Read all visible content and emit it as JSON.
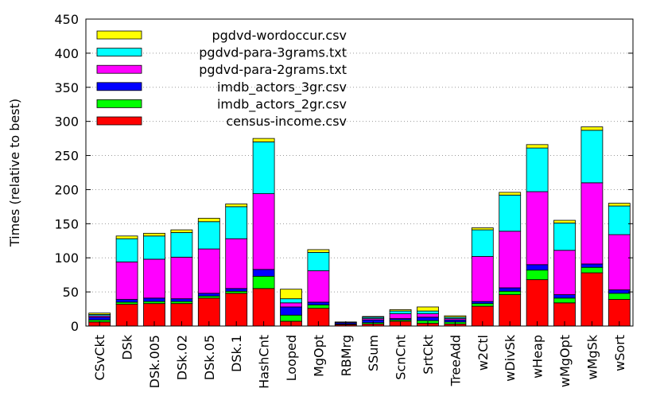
{
  "chart_data": {
    "type": "bar",
    "stacked": true,
    "title": "",
    "xlabel": "",
    "ylabel": "Times (relative to best)",
    "ylim": [
      0,
      450
    ],
    "yticks": [
      0,
      50,
      100,
      150,
      200,
      250,
      300,
      350,
      400,
      450
    ],
    "grid": "y dotted",
    "legend_position": "top-left",
    "categories": [
      "CSvCkt",
      "DSk",
      "DSk.005",
      "DSk.02",
      "DSk.05",
      "DSk.1",
      "HashCnt",
      "Looped",
      "MgOpt",
      "RBMrg",
      "SSum",
      "ScnCnt",
      "SrtCkt",
      "TreeAdd",
      "w2Ctl",
      "wDivSk",
      "wHeap",
      "wMgOpt",
      "wMgSk",
      "wSort"
    ],
    "series": [
      {
        "name": "census-income.csv",
        "color": "#ff0000",
        "values": [
          6,
          32,
          33,
          33,
          41,
          48,
          55,
          7,
          26,
          2,
          3,
          7,
          4,
          3,
          29,
          46,
          68,
          34,
          78,
          39
        ]
      },
      {
        "name": "imdb_actors_2gr.csv",
        "color": "#00ff00",
        "values": [
          3,
          3,
          3,
          3,
          3,
          3,
          18,
          9,
          5,
          1,
          2,
          2,
          4,
          3,
          4,
          5,
          14,
          7,
          8,
          9
        ]
      },
      {
        "name": "imdb_actors_3gr.csv",
        "color": "#0000ff",
        "values": [
          4,
          4,
          5,
          4,
          4,
          4,
          10,
          12,
          4,
          2,
          4,
          2,
          5,
          3,
          3,
          5,
          8,
          5,
          5,
          5
        ]
      },
      {
        "name": "pgdvd-para-2grams.txt",
        "color": "#ff00ff",
        "values": [
          2,
          55,
          57,
          61,
          65,
          73,
          111,
          6,
          46,
          0,
          2,
          7,
          5,
          2,
          66,
          83,
          107,
          65,
          119,
          81
        ]
      },
      {
        "name": "pgdvd-para-3grams.txt",
        "color": "#00ffff",
        "values": [
          2,
          34,
          34,
          36,
          40,
          47,
          76,
          6,
          27,
          0,
          2,
          4,
          4,
          2,
          39,
          53,
          64,
          40,
          77,
          42
        ]
      },
      {
        "name": "pgdvd-wordoccur.csv",
        "color": "#ffff00",
        "values": [
          2,
          4,
          4,
          4,
          5,
          4,
          5,
          14,
          4,
          1,
          1,
          2,
          6,
          2,
          3,
          4,
          5,
          4,
          5,
          4
        ]
      }
    ]
  }
}
